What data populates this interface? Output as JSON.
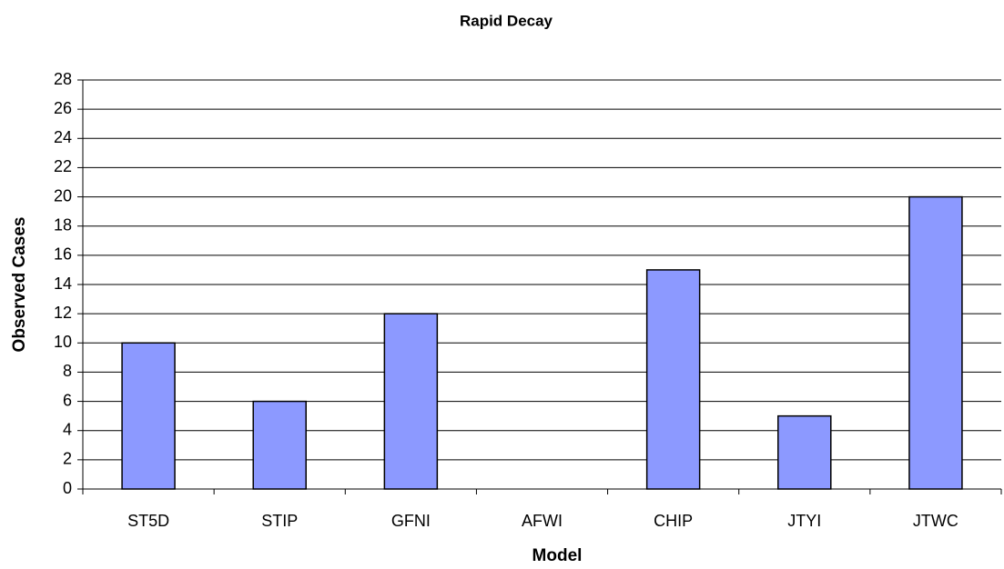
{
  "chart_data": {
    "type": "bar",
    "title": "Rapid Decay",
    "x_label": "Model",
    "y_label": "Observed Cases",
    "categories": [
      "ST5D",
      "STIP",
      "GFNI",
      "AFWI",
      "CHIP",
      "JTYI",
      "JTWC"
    ],
    "values": [
      10,
      6,
      12,
      0,
      15,
      5,
      20
    ],
    "color": "#8c99ff",
    "ylim": [
      0,
      28
    ],
    "yticks": [
      0,
      2,
      4,
      6,
      8,
      10,
      12,
      14,
      16,
      18,
      20,
      22,
      24,
      26,
      28
    ],
    "grid": true
  }
}
